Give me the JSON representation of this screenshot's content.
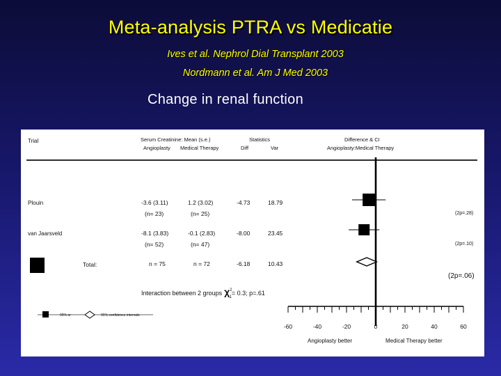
{
  "slide": {
    "title": "Meta-analysis PTRA vs Medicatie",
    "ref1": "Ives et al. Nephrol Dial Transplant 2003",
    "ref2": "Nordmann et al. Am J Med 2003",
    "subtitle": "Change in renal function"
  },
  "chart_data": {
    "type": "forest",
    "headers": {
      "trial": "Trial",
      "creat": "Serum Creatinine: Mean (s.e.)",
      "angioplasty": "Angioplasty",
      "medical": "Medical Therapy",
      "statistics": "Statistics",
      "oe": "Diff",
      "var": "Var",
      "diffci": "Difference & CI",
      "diffci_sub": "Angioplasty:Medical Therapy"
    },
    "rows": [
      {
        "trial": "Plouin",
        "angio": "-3.6 (3.11)",
        "angio_n": "(n=   23)",
        "med": "1.2 (3.02)",
        "med_n": "(n=   25)",
        "diff": "-4.73",
        "var": "18.79",
        "est": -4.7,
        "half": 11.5,
        "box": 9,
        "p": "(2p=.28)"
      },
      {
        "trial": "van Jaarsveld",
        "angio": "-8.1 (3.83)",
        "angio_n": "(n=   52)",
        "med": "-0.1 (2.83)",
        "med_n": "(n=   47)",
        "diff": "-8.00",
        "var": "23.45",
        "est": -8.0,
        "half": 10.5,
        "box": 8,
        "p": "(2p=.10)"
      }
    ],
    "total": {
      "label": "Total:",
      "angio_n": "n = 75",
      "med_n": "n = 72",
      "diff": "-6.18",
      "var": "10.43",
      "est": -6.2,
      "lo": -13.0,
      "hi": 0.6,
      "p": "(2p=.06)"
    },
    "interaction": {
      "prefix": "Interaction between 2 groups",
      "chi": "χ",
      "chi_sub": "1",
      "chi_sup": "2",
      "rest": "= 0.3; p=.61"
    },
    "legend": {
      "box": "99% or",
      "diamond": "95% confidence intervals"
    },
    "axis": {
      "min": -60,
      "max": 60,
      "ticks": [
        -60,
        -40,
        -20,
        0,
        20,
        40,
        60
      ],
      "left_label": "Angioplasty better",
      "right_label": "Medical Therapy better"
    }
  }
}
